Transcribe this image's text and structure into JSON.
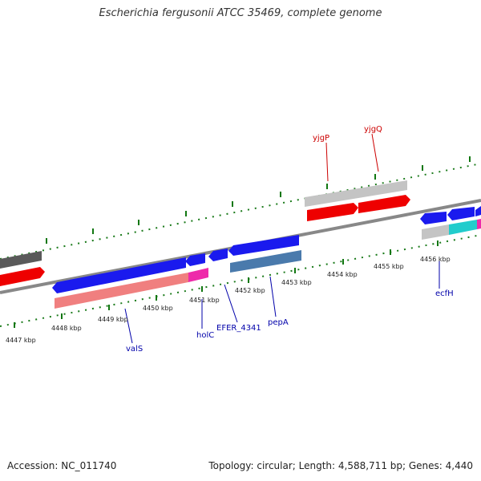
{
  "header": {
    "title": "Escherichia fergusonii ATCC 35469, complete genome"
  },
  "footer": {
    "accession": "Accession: NC_011740",
    "topology": "Topology: circular; Length: 4,588,711 bp; Genes: 4,440"
  },
  "colors": {
    "forward_gene": "#ff0000",
    "reverse_gene": "#0000ee",
    "rna_gene": "#ff33aa",
    "tick": "#117711",
    "backbone": "#888888",
    "forward_label": "#cc0000",
    "reverse_label": "#0000aa"
  },
  "kbp_ticks": [
    {
      "label": "4447 kbp"
    },
    {
      "label": "4448 kbp"
    },
    {
      "label": "4449 kbp"
    },
    {
      "label": "4450 kbp"
    },
    {
      "label": "4451 kbp"
    },
    {
      "label": "4452 kbp"
    },
    {
      "label": "4453 kbp"
    },
    {
      "label": "4454 kbp"
    },
    {
      "label": "4455 kbp"
    },
    {
      "label": "4456 kbp"
    }
  ],
  "gene_labels": [
    {
      "name": "yjgP",
      "strand": "forward"
    },
    {
      "name": "yjgQ",
      "strand": "forward"
    },
    {
      "name": "ecfH",
      "strand": "reverse"
    },
    {
      "name": "pepA",
      "strand": "reverse"
    },
    {
      "name": "EFER_4341",
      "strand": "reverse"
    },
    {
      "name": "holC",
      "strand": "reverse"
    },
    {
      "name": "valS",
      "strand": "reverse"
    }
  ]
}
